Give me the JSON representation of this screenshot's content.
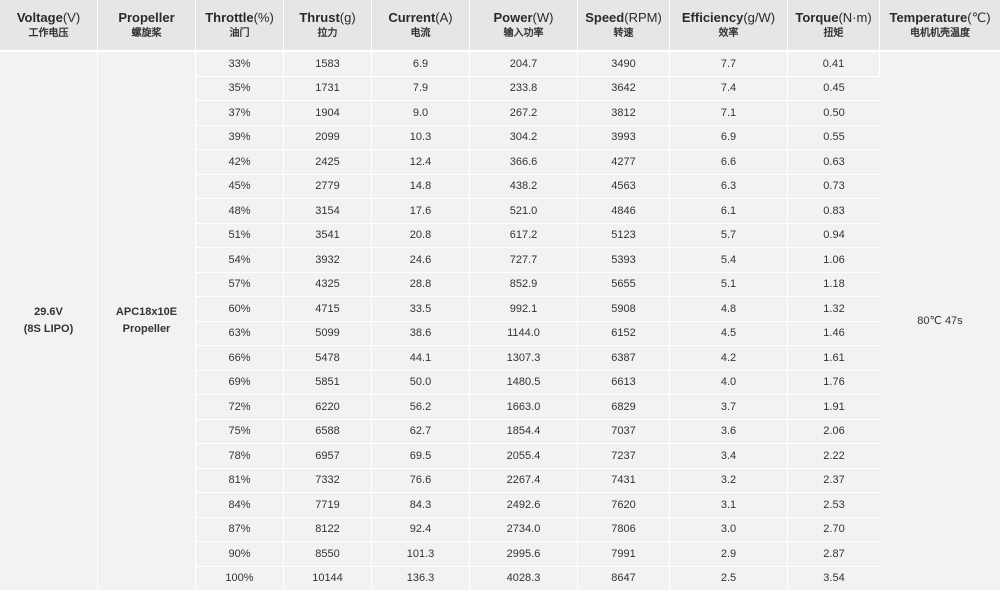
{
  "headers": [
    {
      "en": "Voltage",
      "unit": "(V)",
      "cn": "工作电压"
    },
    {
      "en": "Propeller",
      "unit": "",
      "cn": "螺旋桨"
    },
    {
      "en": "Throttle",
      "unit": "(%)",
      "cn": "油门"
    },
    {
      "en": "Thrust",
      "unit": "(g)",
      "cn": "拉力"
    },
    {
      "en": "Current",
      "unit": "(A)",
      "cn": "电流"
    },
    {
      "en": "Power",
      "unit": "(W)",
      "cn": "输入功率"
    },
    {
      "en": "Speed",
      "unit": "(RPM)",
      "cn": "转速"
    },
    {
      "en": "Efficiency",
      "unit": "(g/W)",
      "cn": "效率"
    },
    {
      "en": "Torque",
      "unit": "(N·m)",
      "cn": "扭矩"
    },
    {
      "en": "Temperature",
      "unit": "(℃)",
      "cn": "电机机壳温度"
    }
  ],
  "voltage": {
    "line1": "29.6V",
    "line2": "(8S LIPO)"
  },
  "propeller": {
    "line1": "APC18x10E",
    "line2": "Propeller"
  },
  "temperature": "80℃  47s",
  "rows": [
    [
      "33%",
      "1583",
      "6.9",
      "204.7",
      "3490",
      "7.7",
      "0.41"
    ],
    [
      "35%",
      "1731",
      "7.9",
      "233.8",
      "3642",
      "7.4",
      "0.45"
    ],
    [
      "37%",
      "1904",
      "9.0",
      "267.2",
      "3812",
      "7.1",
      "0.50"
    ],
    [
      "39%",
      "2099",
      "10.3",
      "304.2",
      "3993",
      "6.9",
      "0.55"
    ],
    [
      "42%",
      "2425",
      "12.4",
      "366.6",
      "4277",
      "6.6",
      "0.63"
    ],
    [
      "45%",
      "2779",
      "14.8",
      "438.2",
      "4563",
      "6.3",
      "0.73"
    ],
    [
      "48%",
      "3154",
      "17.6",
      "521.0",
      "4846",
      "6.1",
      "0.83"
    ],
    [
      "51%",
      "3541",
      "20.8",
      "617.2",
      "5123",
      "5.7",
      "0.94"
    ],
    [
      "54%",
      "3932",
      "24.6",
      "727.7",
      "5393",
      "5.4",
      "1.06"
    ],
    [
      "57%",
      "4325",
      "28.8",
      "852.9",
      "5655",
      "5.1",
      "1.18"
    ],
    [
      "60%",
      "4715",
      "33.5",
      "992.1",
      "5908",
      "4.8",
      "1.32"
    ],
    [
      "63%",
      "5099",
      "38.6",
      "1144.0",
      "6152",
      "4.5",
      "1.46"
    ],
    [
      "66%",
      "5478",
      "44.1",
      "1307.3",
      "6387",
      "4.2",
      "1.61"
    ],
    [
      "69%",
      "5851",
      "50.0",
      "1480.5",
      "6613",
      "4.0",
      "1.76"
    ],
    [
      "72%",
      "6220",
      "56.2",
      "1663.0",
      "6829",
      "3.7",
      "1.91"
    ],
    [
      "75%",
      "6588",
      "62.7",
      "1854.4",
      "7037",
      "3.6",
      "2.06"
    ],
    [
      "78%",
      "6957",
      "69.5",
      "2055.4",
      "7237",
      "3.4",
      "2.22"
    ],
    [
      "81%",
      "7332",
      "76.6",
      "2267.4",
      "7431",
      "3.2",
      "2.37"
    ],
    [
      "84%",
      "7719",
      "84.3",
      "2492.6",
      "7620",
      "3.1",
      "2.53"
    ],
    [
      "87%",
      "8122",
      "92.4",
      "2734.0",
      "7806",
      "3.0",
      "2.70"
    ],
    [
      "90%",
      "8550",
      "101.3",
      "2995.6",
      "7991",
      "2.9",
      "2.87"
    ],
    [
      "100%",
      "10144",
      "136.3",
      "4028.3",
      "8647",
      "2.5",
      "3.54"
    ]
  ]
}
